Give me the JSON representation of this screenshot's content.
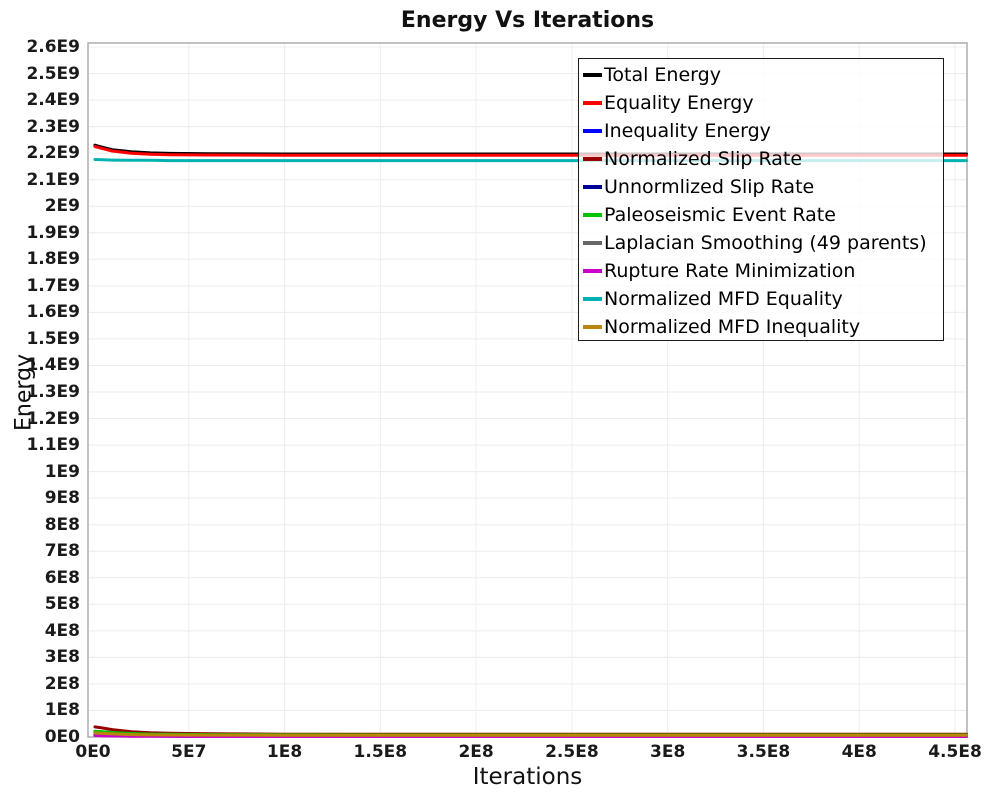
{
  "chart_data": {
    "type": "line",
    "title": "Energy Vs Iterations",
    "xlabel": "Iterations",
    "ylabel": "Energy",
    "xlim": [
      0,
      456000000
    ],
    "ylim": [
      0,
      2600000000
    ],
    "grid": true,
    "legend_position": "top-right-inside",
    "colors": {
      "plot_border": "#adadad",
      "gridline": "#ececec",
      "legend_border": "#1a1a1a",
      "text": "#1a1a1a"
    },
    "x_ticks": [
      {
        "label": "0E0",
        "value": 0
      },
      {
        "label": "5E7",
        "value": 50000000
      },
      {
        "label": "1E8",
        "value": 100000000
      },
      {
        "label": "1.5E8",
        "value": 150000000
      },
      {
        "label": "2E8",
        "value": 200000000
      },
      {
        "label": "2.5E8",
        "value": 250000000
      },
      {
        "label": "3E8",
        "value": 300000000
      },
      {
        "label": "3.5E8",
        "value": 350000000
      },
      {
        "label": "4E8",
        "value": 400000000
      },
      {
        "label": "4.5E8",
        "value": 450000000
      }
    ],
    "y_ticks": [
      {
        "label": "0E0",
        "value": 0
      },
      {
        "label": "1E8",
        "value": 100000000
      },
      {
        "label": "2E8",
        "value": 200000000
      },
      {
        "label": "3E8",
        "value": 300000000
      },
      {
        "label": "4E8",
        "value": 400000000
      },
      {
        "label": "5E8",
        "value": 500000000
      },
      {
        "label": "6E8",
        "value": 600000000
      },
      {
        "label": "7E8",
        "value": 700000000
      },
      {
        "label": "8E8",
        "value": 800000000
      },
      {
        "label": "9E8",
        "value": 900000000
      },
      {
        "label": "1E9",
        "value": 1000000000
      },
      {
        "label": "1.1E9",
        "value": 1100000000
      },
      {
        "label": "1.2E9",
        "value": 1200000000
      },
      {
        "label": "1.3E9",
        "value": 1300000000
      },
      {
        "label": "1.4E9",
        "value": 1400000000
      },
      {
        "label": "1.5E9",
        "value": 1500000000
      },
      {
        "label": "1.6E9",
        "value": 1600000000
      },
      {
        "label": "1.7E9",
        "value": 1700000000
      },
      {
        "label": "1.8E9",
        "value": 1800000000
      },
      {
        "label": "1.9E9",
        "value": 1900000000
      },
      {
        "label": "2E9",
        "value": 2000000000
      },
      {
        "label": "2.1E9",
        "value": 2100000000
      },
      {
        "label": "2.2E9",
        "value": 2200000000
      },
      {
        "label": "2.3E9",
        "value": 2300000000
      },
      {
        "label": "2.4E9",
        "value": 2400000000
      },
      {
        "label": "2.5E9",
        "value": 2500000000
      },
      {
        "label": "2.6E9",
        "value": 2600000000
      }
    ],
    "series": [
      {
        "name": "Total Energy",
        "color": "#000000",
        "x": [
          1000000,
          5000000,
          10000000,
          20000000,
          30000000,
          40000000,
          60000000,
          100000000,
          150000000,
          250000000,
          350000000,
          456000000
        ],
        "y": [
          2230000000,
          2222000000,
          2213000000,
          2205000000,
          2201000000,
          2199000000,
          2198000000,
          2197000000,
          2197000000,
          2197000000,
          2197000000,
          2197000000
        ]
      },
      {
        "name": "Equality Energy",
        "color": "#ff0000",
        "x": [
          1000000,
          5000000,
          10000000,
          20000000,
          30000000,
          40000000,
          60000000,
          100000000,
          150000000,
          250000000,
          350000000,
          456000000
        ],
        "y": [
          2225000000,
          2217000000,
          2208000000,
          2200000000,
          2196000000,
          2194000000,
          2193000000,
          2192000000,
          2192000000,
          2192000000,
          2192000000,
          2192000000
        ]
      },
      {
        "name": "Inequality Energy",
        "color": "#0000ff",
        "x": [
          1000000,
          5000000,
          10000000,
          20000000,
          30000000,
          40000000,
          60000000,
          100000000,
          150000000,
          250000000,
          350000000,
          456000000
        ],
        "y": [
          16000000,
          14000000,
          12000000,
          9000000,
          8000000,
          7000000,
          6500000,
          6000000,
          6000000,
          6000000,
          6000000,
          6000000
        ]
      },
      {
        "name": "Normalized Slip Rate",
        "color": "#990000",
        "x": [
          1000000,
          5000000,
          10000000,
          20000000,
          30000000,
          40000000,
          60000000,
          100000000,
          150000000,
          250000000,
          350000000,
          456000000
        ],
        "y": [
          38000000,
          34000000,
          28000000,
          20000000,
          16000000,
          14000000,
          12000000,
          10500000,
          10000000,
          10000000,
          10000000,
          10000000
        ]
      },
      {
        "name": "Unnormlized Slip Rate",
        "color": "#000099",
        "x": [
          1000000,
          5000000,
          10000000,
          20000000,
          30000000,
          40000000,
          60000000,
          100000000,
          150000000,
          250000000,
          350000000,
          456000000
        ],
        "y": [
          12000000,
          10500000,
          9000000,
          7000000,
          6000000,
          5500000,
          5200000,
          5000000,
          5000000,
          5000000,
          5000000,
          5000000
        ]
      },
      {
        "name": "Paleoseismic Event Rate",
        "color": "#00c300",
        "x": [
          1000000,
          5000000,
          10000000,
          20000000,
          30000000,
          40000000,
          60000000,
          100000000,
          150000000,
          250000000,
          350000000,
          456000000
        ],
        "y": [
          22000000,
          20000000,
          17000000,
          13000000,
          11000000,
          10000000,
          9000000,
          8500000,
          8000000,
          8000000,
          8000000,
          8000000
        ]
      },
      {
        "name": "Laplacian Smoothing (49 parents)",
        "color": "#666666",
        "x": [
          1000000,
          5000000,
          10000000,
          20000000,
          30000000,
          40000000,
          60000000,
          100000000,
          150000000,
          250000000,
          350000000,
          456000000
        ],
        "y": [
          9000000,
          8000000,
          6500000,
          5000000,
          4000000,
          3500000,
          3200000,
          3000000,
          3000000,
          3000000,
          3000000,
          3000000
        ]
      },
      {
        "name": "Rupture Rate Minimization",
        "color": "#cc00cc",
        "x": [
          1000000,
          5000000,
          10000000,
          20000000,
          30000000,
          40000000,
          60000000,
          100000000,
          150000000,
          250000000,
          350000000,
          456000000
        ],
        "y": [
          6000000,
          5000000,
          4000000,
          3000000,
          2500000,
          2200000,
          2000000,
          2000000,
          2000000,
          2000000,
          2000000,
          2000000
        ]
      },
      {
        "name": "Normalized MFD Equality",
        "color": "#00b2b2",
        "x": [
          1000000,
          5000000,
          10000000,
          20000000,
          30000000,
          40000000,
          60000000,
          100000000,
          150000000,
          250000000,
          350000000,
          456000000
        ],
        "y": [
          2176000000,
          2175000000,
          2174000000,
          2173000000,
          2173000000,
          2172000000,
          2172000000,
          2172000000,
          2172000000,
          2172000000,
          2172000000,
          2172000000
        ]
      },
      {
        "name": "Normalized MFD Inequality",
        "color": "#b8860b",
        "x": [
          1000000,
          5000000,
          10000000,
          20000000,
          30000000,
          40000000,
          60000000,
          100000000,
          150000000,
          250000000,
          350000000,
          456000000
        ],
        "y": [
          15000000,
          13500000,
          11500000,
          9000000,
          8000000,
          7500000,
          7000000,
          6800000,
          6500000,
          6500000,
          6500000,
          6500000
        ]
      }
    ]
  }
}
